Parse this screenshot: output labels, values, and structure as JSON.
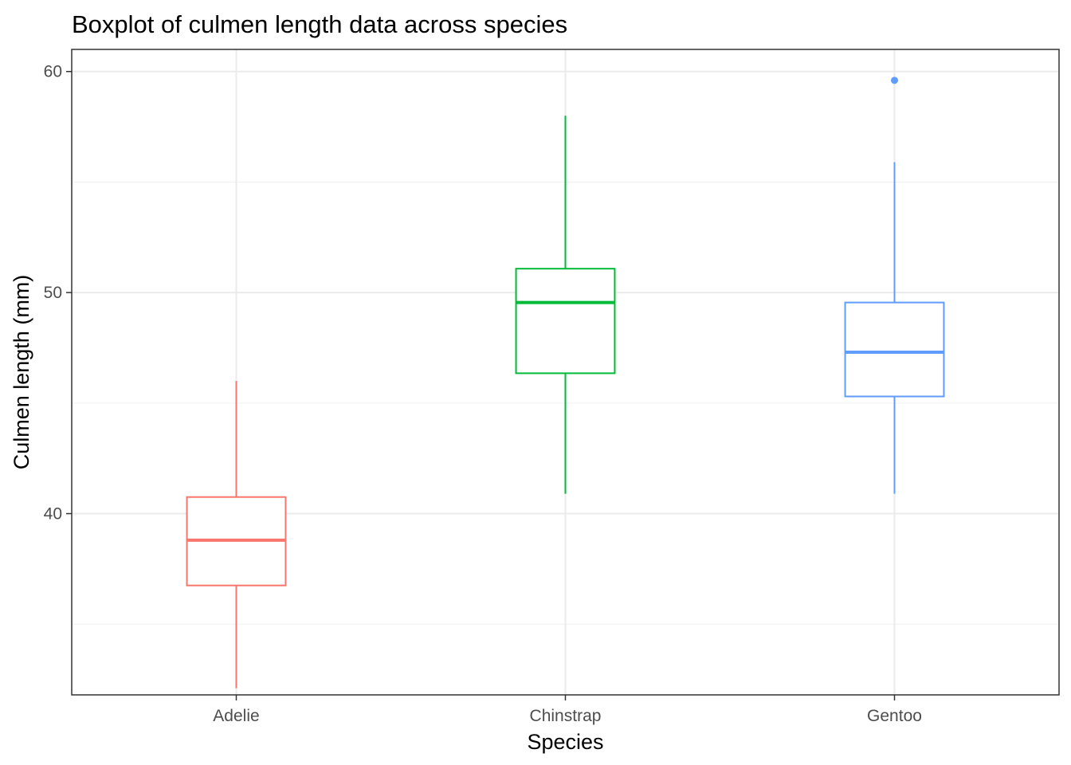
{
  "chart_data": {
    "type": "boxplot",
    "title": "Boxplot of culmen length data across species",
    "xlabel": "Species",
    "ylabel": "Culmen length (mm)",
    "ylim": [
      31.8,
      61.0
    ],
    "y_major_ticks": [
      40,
      50,
      60
    ],
    "y_minor_ticks": [
      35,
      45,
      55
    ],
    "grid": true,
    "legend": "none",
    "categories": [
      "Adelie",
      "Chinstrap",
      "Gentoo"
    ],
    "series": [
      {
        "category": "Adelie",
        "color": "#F8766D",
        "min": 32.1,
        "q1": 36.75,
        "median": 38.8,
        "q3": 40.75,
        "max": 46.0,
        "outliers": []
      },
      {
        "category": "Chinstrap",
        "color": "#00BA38",
        "min": 40.9,
        "q1": 46.35,
        "median": 49.55,
        "q3": 51.08,
        "max": 58.0,
        "outliers": []
      },
      {
        "category": "Gentoo",
        "color": "#619CFF",
        "min": 40.9,
        "q1": 45.3,
        "median": 47.3,
        "q3": 49.55,
        "max": 55.9,
        "outliers": [
          59.6
        ]
      }
    ]
  }
}
